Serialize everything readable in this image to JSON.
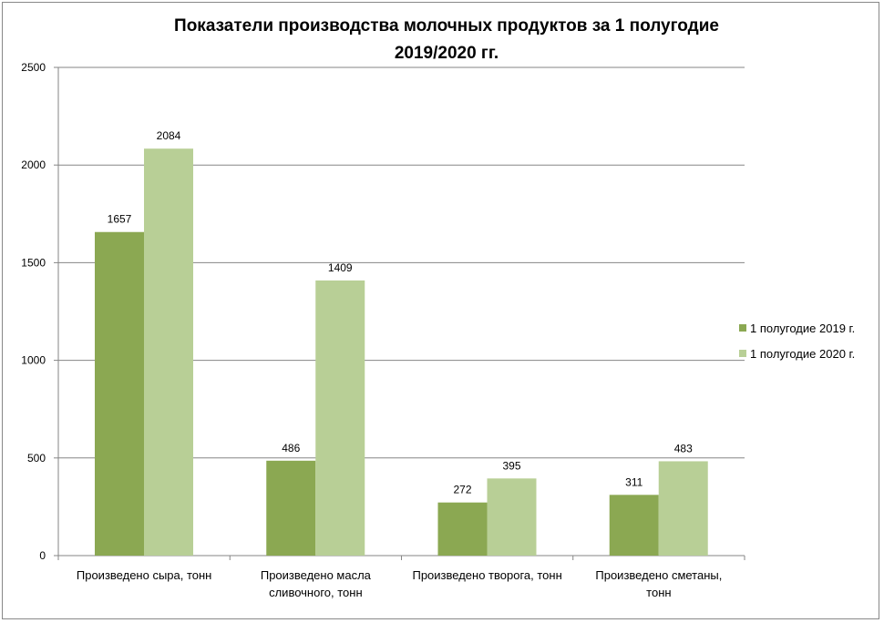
{
  "chart_data": {
    "type": "bar",
    "title": "Показатели производства молочных продуктов за 1 полугодие 2019/2020 гг.",
    "title_lines": [
      "Показатели производства молочных продуктов за 1 полугодие",
      "2019/2020 гг."
    ],
    "categories": [
      [
        "Произведено сыра, тонн"
      ],
      [
        "Произведено масла",
        "сливочного, тонн"
      ],
      [
        "Произведено творога, тонн"
      ],
      [
        "Произведено сметаны,",
        "тонн"
      ]
    ],
    "series": [
      {
        "name": "1 полугодие 2019 г.",
        "color": "#8BA852",
        "values": [
          1657,
          486,
          272,
          311
        ]
      },
      {
        "name": "1 полугодие 2020 г.",
        "color": "#B8CF96",
        "values": [
          2084,
          1409,
          395,
          483
        ]
      }
    ],
    "yticks": [
      0,
      500,
      1000,
      1500,
      2000,
      2500
    ],
    "ylim": [
      0,
      2500
    ],
    "grid": true,
    "legend": "right",
    "xlabel": "",
    "ylabel": ""
  }
}
